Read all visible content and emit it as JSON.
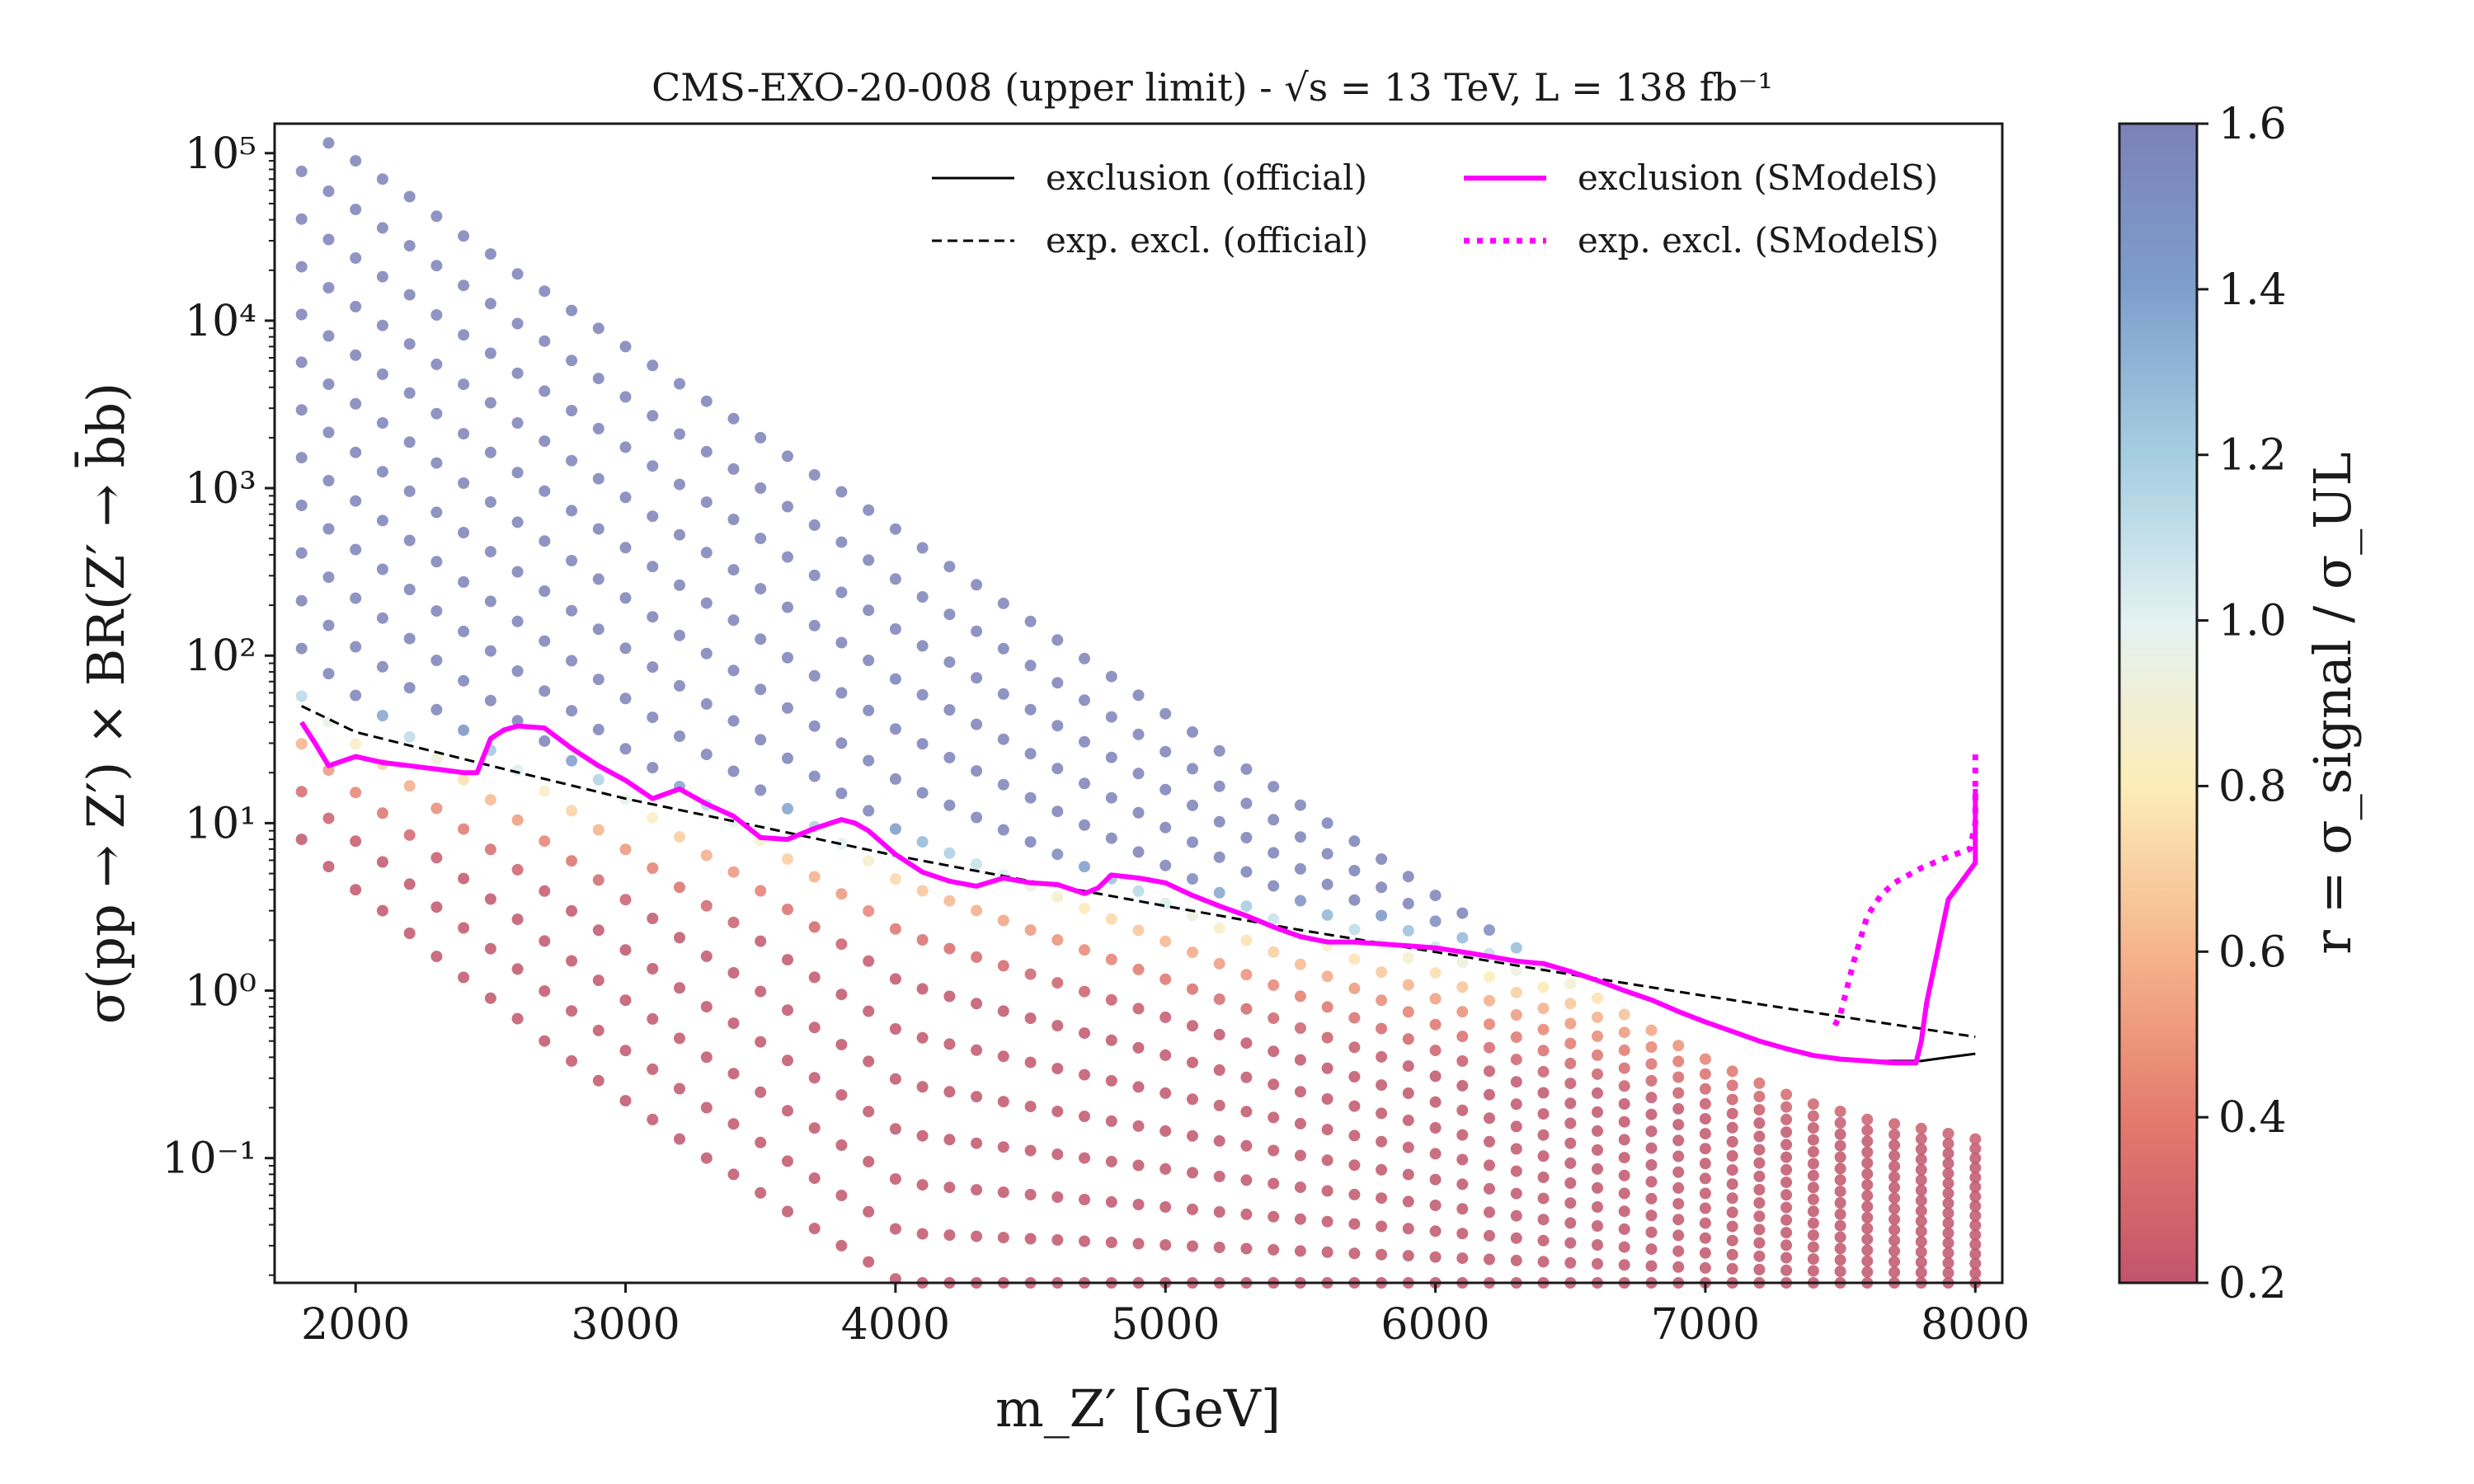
{
  "chart_data": {
    "type": "scatter",
    "title": "CMS-EXO-20-008 (upper limit) - √s = 13 TeV, L = 138 fb⁻¹",
    "xlabel": "m_Z′ [GeV]",
    "ylabel": "σ(pp → Z′) × BR(Z′ → b̄b)",
    "xlim": [
      1700,
      8100
    ],
    "ylim": [
      0.018,
      150000
    ],
    "yscale": "log",
    "x_ticks": [
      "2000",
      "3000",
      "4000",
      "5000",
      "6000",
      "7000",
      "8000"
    ],
    "y_ticks": [
      "10⁻¹",
      "10⁰",
      "10¹",
      "10²",
      "10³",
      "10⁴",
      "10⁵"
    ],
    "grid": false,
    "legend": {
      "placement": "top-right",
      "entries": [
        {
          "label": "exclusion (official)",
          "color": "#000000",
          "style": "solid"
        },
        {
          "label": "exp. excl. (official)",
          "color": "#000000",
          "style": "dashed"
        },
        {
          "label": "exclusion (SModelS)",
          "color": "#ff00ff",
          "style": "solid"
        },
        {
          "label": "exp. excl. (SModelS)",
          "color": "#ff00ff",
          "style": "dotted"
        }
      ]
    },
    "colorbar": {
      "label": "r = σ_signal / σ_UL",
      "range": [
        0.2,
        1.6
      ],
      "ticks": [
        "0.2",
        "0.4",
        "0.6",
        "0.8",
        "1.0",
        "1.2",
        "1.4",
        "1.6"
      ],
      "colors": [
        "#c1556c",
        "#e37a6d",
        "#f5b28a",
        "#fcedb8",
        "#e3f1f2",
        "#a7cfe2",
        "#7d9ecc",
        "#7c81b8"
      ]
    },
    "scatter_grid": {
      "mass_points": [
        1800,
        1900,
        2000,
        2100,
        2200,
        2300,
        2400,
        2500,
        2600,
        2700,
        2800,
        2900,
        3000,
        3100,
        3200,
        3300,
        3400,
        3500,
        3600,
        3700,
        3800,
        3900,
        4000,
        4100,
        4200,
        4300,
        4400,
        4500,
        4600,
        4700,
        4800,
        4900,
        5000,
        5100,
        5200,
        5300,
        5400,
        5500,
        5600,
        5700,
        5800,
        5900,
        6000,
        6100,
        6200,
        6300,
        6400,
        6500,
        6600,
        6700,
        6800,
        6900,
        7000,
        7100,
        7200,
        7300,
        7400,
        7500,
        7600,
        7700,
        7800,
        7900,
        8000
      ],
      "sigma_upper": [
        150000,
        115000,
        90000,
        70000,
        55000,
        42000,
        32000,
        25000,
        19000,
        15000,
        11500,
        9000,
        7000,
        5400,
        4200,
        3300,
        2600,
        2000,
        1550,
        1200,
        950,
        740,
        570,
        440,
        340,
        265,
        205,
        160,
        124,
        96,
        75,
        58,
        45,
        35,
        27,
        21,
        16.5,
        12.8,
        10,
        7.8,
        6.1,
        4.8,
        3.7,
        2.9,
        2.3,
        1.8,
        1.4,
        1.1,
        0.9,
        0.72,
        0.58,
        0.47,
        0.39,
        0.33,
        0.28,
        0.24,
        0.21,
        0.19,
        0.17,
        0.16,
        0.15,
        0.14,
        0.13
      ],
      "sigma_lower": [
        8,
        5.5,
        4,
        3,
        2.2,
        1.6,
        1.2,
        0.9,
        0.68,
        0.5,
        0.38,
        0.29,
        0.22,
        0.17,
        0.13,
        0.1,
        0.08,
        0.062,
        0.048,
        0.038,
        0.03,
        0.024,
        0.019,
        0.018,
        0.018,
        0.018,
        0.018,
        0.018,
        0.018,
        0.018,
        0.018,
        0.018,
        0.018,
        0.018,
        0.018,
        0.018,
        0.018,
        0.018,
        0.018,
        0.018,
        0.018,
        0.018,
        0.018,
        0.018,
        0.018,
        0.018,
        0.018,
        0.018,
        0.018,
        0.018,
        0.018,
        0.018,
        0.018,
        0.018,
        0.018,
        0.018,
        0.018,
        0.018,
        0.018,
        0.018,
        0.018,
        0.018,
        0.018
      ],
      "points_per_column": 16
    },
    "series": [
      {
        "name": "exclusion (official)",
        "color": "#000000",
        "style": "solid",
        "x": [
          1800,
          1850,
          1900,
          2000,
          2100,
          2200,
          2300,
          2400,
          2450,
          2500,
          2550,
          2600,
          2700,
          2800,
          2900,
          3000,
          3100,
          3200,
          3300,
          3400,
          3500,
          3600,
          3700,
          3800,
          3850,
          3900,
          4000,
          4100,
          4200,
          4300,
          4400,
          4500,
          4600,
          4700,
          4750,
          4800,
          4900,
          5000,
          5100,
          5200,
          5300,
          5400,
          5500,
          5600,
          5700,
          5800,
          5900,
          6000,
          6100,
          6200,
          6300,
          6400,
          6500,
          6600,
          6700,
          6800,
          6900,
          7000,
          7100,
          7200,
          7300,
          7400,
          7500,
          7600,
          7700,
          7800,
          7900,
          8000
        ],
        "y": [
          40,
          30,
          22,
          25,
          23,
          22,
          21,
          20,
          20,
          32,
          36,
          38,
          37,
          28,
          22,
          18,
          14,
          16,
          13,
          11,
          8.2,
          8.0,
          9.3,
          10.5,
          10,
          9.0,
          6.5,
          5.1,
          4.5,
          4.2,
          4.7,
          4.4,
          4.3,
          3.8,
          4.1,
          4.9,
          4.7,
          4.4,
          3.7,
          3.2,
          2.8,
          2.4,
          2.1,
          1.95,
          1.95,
          1.9,
          1.85,
          1.8,
          1.7,
          1.6,
          1.5,
          1.45,
          1.3,
          1.15,
          1.0,
          0.88,
          0.75,
          0.65,
          0.57,
          0.5,
          0.45,
          0.41,
          0.39,
          0.38,
          0.38,
          0.38,
          0.4,
          0.42
        ]
      },
      {
        "name": "exp. excl. (official)",
        "color": "#000000",
        "style": "dashed",
        "x": [
          1800,
          2000,
          2500,
          3000,
          3500,
          4000,
          4500,
          5000,
          5500,
          6000,
          6500,
          7000,
          7500,
          8000
        ],
        "y": [
          50,
          35,
          22,
          14,
          9.5,
          6.4,
          4.5,
          3.2,
          2.3,
          1.7,
          1.25,
          0.93,
          0.7,
          0.53
        ]
      },
      {
        "name": "exclusion (SModelS)",
        "color": "#ff00ff",
        "style": "solid",
        "x": [
          1800,
          1850,
          1900,
          2000,
          2100,
          2200,
          2300,
          2400,
          2450,
          2500,
          2550,
          2600,
          2700,
          2800,
          2900,
          3000,
          3100,
          3200,
          3300,
          3400,
          3500,
          3600,
          3700,
          3800,
          3850,
          3900,
          4000,
          4100,
          4200,
          4300,
          4400,
          4500,
          4600,
          4700,
          4750,
          4800,
          4900,
          5000,
          5100,
          5200,
          5300,
          5400,
          5500,
          5600,
          5700,
          5800,
          5900,
          6000,
          6100,
          6200,
          6300,
          6400,
          6500,
          6600,
          6700,
          6800,
          6900,
          7000,
          7100,
          7200,
          7300,
          7400,
          7500,
          7600,
          7700,
          7780,
          7800,
          7820,
          7900,
          8000,
          8000,
          8000
        ],
        "y": [
          40,
          30,
          22,
          25,
          23,
          22,
          21,
          20,
          20,
          32,
          36,
          38,
          37,
          28,
          22,
          18,
          14,
          16,
          13,
          11,
          8.2,
          8.0,
          9.3,
          10.5,
          10,
          9.0,
          6.5,
          5.1,
          4.5,
          4.2,
          4.7,
          4.4,
          4.3,
          3.8,
          4.1,
          4.9,
          4.7,
          4.4,
          3.7,
          3.2,
          2.8,
          2.4,
          2.1,
          1.95,
          1.95,
          1.9,
          1.85,
          1.8,
          1.7,
          1.6,
          1.5,
          1.45,
          1.3,
          1.15,
          1.0,
          0.88,
          0.75,
          0.65,
          0.57,
          0.5,
          0.45,
          0.41,
          0.39,
          0.38,
          0.37,
          0.37,
          0.5,
          0.85,
          3.5,
          5.8,
          10,
          16
        ]
      },
      {
        "name": "exp. excl. (SModelS)",
        "color": "#ff00ff",
        "style": "dotted",
        "x": [
          7480,
          7500,
          7550,
          7600,
          7650,
          7700,
          7800,
          7900,
          7980,
          8000,
          8000
        ],
        "y": [
          0.62,
          0.72,
          1.5,
          2.8,
          3.7,
          4.4,
          5.4,
          6.3,
          7.0,
          10,
          27
        ]
      }
    ]
  }
}
